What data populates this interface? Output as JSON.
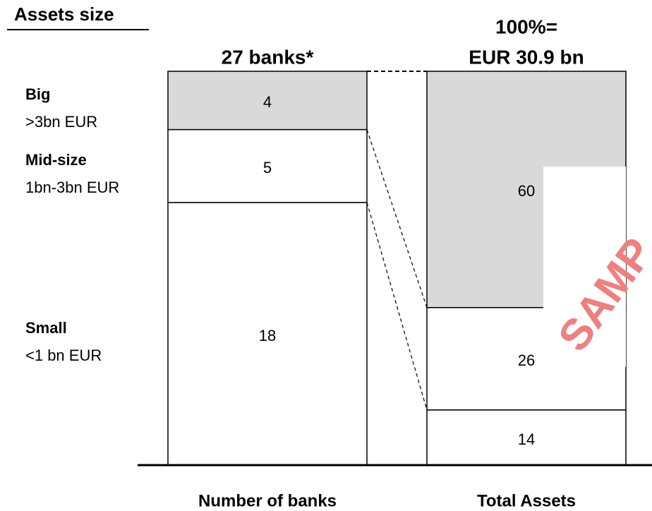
{
  "chart_data": {
    "type": "stacked_bar",
    "title": "Assets size",
    "categories": [
      "Number of banks",
      "Total Assets"
    ],
    "bar_headers": [
      [
        "27 banks*"
      ],
      [
        "100%=",
        "EUR 30.9 bn"
      ]
    ],
    "series": [
      {
        "name": "Big",
        "description": ">3bn EUR",
        "color": "#d9d9d9",
        "values": [
          4,
          60
        ]
      },
      {
        "name": "Mid-size",
        "description": "1bn-3bn EUR",
        "color": "#ffffff",
        "values": [
          5,
          26
        ]
      },
      {
        "name": "Small",
        "description": "<1 bn EUR",
        "color": "#ffffff",
        "values": [
          18,
          14
        ]
      }
    ],
    "watermark": "SAMP"
  }
}
